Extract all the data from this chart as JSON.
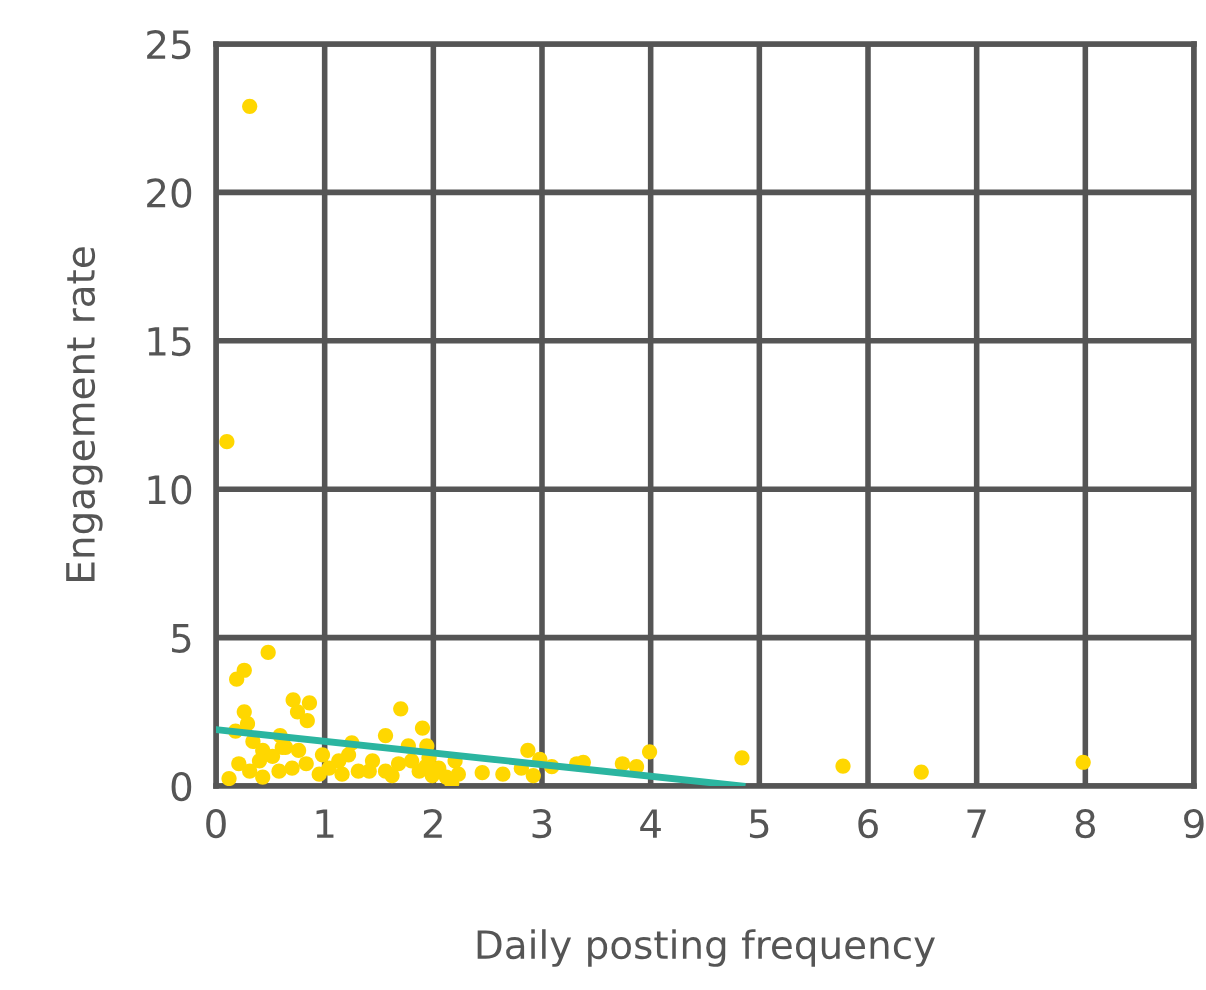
{
  "chart_data": {
    "type": "scatter",
    "xlabel": "Daily posting frequency",
    "ylabel": "Engagement rate",
    "xlim": [
      0,
      9
    ],
    "ylim": [
      0,
      25
    ],
    "xticks": [
      0,
      1,
      2,
      3,
      4,
      5,
      6,
      7,
      8,
      9
    ],
    "yticks": [
      0,
      5,
      10,
      15,
      20,
      25
    ],
    "grid": true,
    "legend": false,
    "marker": "circle",
    "series": [
      {
        "color": "#ffd700",
        "x": [
          0.31,
          0.1,
          0.48,
          0.26,
          0.19,
          0.26,
          0.71,
          0.86,
          0.75,
          0.84,
          1.7,
          1.9,
          0.29,
          0.18,
          0.59,
          1.56,
          1.25,
          1.77,
          1.94,
          2.87,
          3.99,
          4.84,
          2.98,
          3.09,
          3.32,
          3.38,
          3.74,
          3.87,
          0.12,
          2.17,
          2.45,
          2.64,
          2.92,
          2.81,
          0.34,
          0.43,
          0.52,
          0.64,
          0.76,
          0.83,
          0.98,
          1.04,
          1.13,
          1.22,
          1.31,
          1.44,
          1.56,
          1.68,
          1.8,
          1.96,
          2.05,
          2.2,
          2.23,
          0.43,
          0.58,
          0.7,
          0.95,
          1.16,
          1.41,
          1.62,
          1.87,
          0.21,
          0.31,
          0.4,
          0.61,
          1.93,
          1.99,
          2.12,
          5.77,
          6.49,
          7.98
        ],
        "values": [
          22.9,
          11.6,
          4.5,
          3.9,
          3.6,
          2.5,
          2.9,
          2.8,
          2.5,
          2.2,
          2.6,
          1.95,
          2.1,
          1.85,
          1.7,
          1.7,
          1.45,
          1.35,
          1.35,
          1.2,
          1.15,
          0.95,
          0.9,
          0.65,
          0.75,
          0.8,
          0.75,
          0.65,
          0.25,
          0.1,
          0.45,
          0.4,
          0.35,
          0.6,
          1.5,
          1.2,
          1.0,
          1.3,
          1.2,
          0.75,
          1.05,
          0.6,
          0.85,
          1.05,
          0.5,
          0.85,
          0.5,
          0.75,
          0.85,
          0.95,
          0.6,
          0.85,
          0.4,
          0.3,
          0.5,
          0.6,
          0.4,
          0.4,
          0.5,
          0.35,
          0.5,
          0.75,
          0.5,
          0.85,
          1.3,
          0.65,
          0.35,
          0.3,
          0.67,
          0.47,
          0.8
        ]
      },
      {
        "type": "line",
        "color": "#2bb5a0",
        "marker": "none",
        "x": [
          0,
          4.84
        ],
        "values": [
          1.9,
          0
        ]
      }
    ]
  }
}
